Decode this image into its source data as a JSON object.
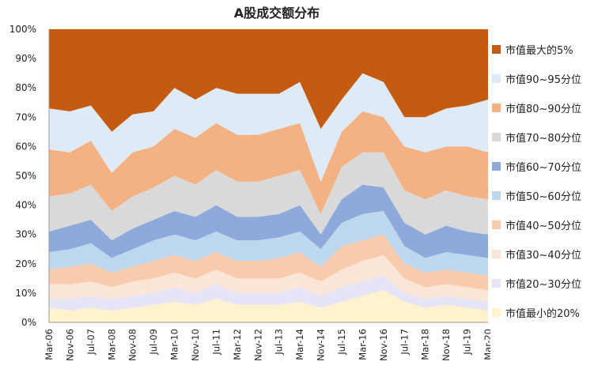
{
  "chart_data": {
    "type": "area",
    "stacked": true,
    "title": "A股成交额分布",
    "xlabel": "",
    "ylabel": "",
    "ylim": [
      0,
      100
    ],
    "yticks": [
      "0%",
      "10%",
      "20%",
      "30%",
      "40%",
      "50%",
      "60%",
      "70%",
      "80%",
      "90%",
      "100%"
    ],
    "x_tick_labels": [
      "Mar-06",
      "Nov-06",
      "Jul-07",
      "Mar-08",
      "Nov-08",
      "Jul-09",
      "Mar-10",
      "Nov-10",
      "Jul-11",
      "Mar-12",
      "Nov-12",
      "Jul-13",
      "Mar-14",
      "Nov-14",
      "Jul-15",
      "Mar-16",
      "Nov-16",
      "Jul-17",
      "Mar-18",
      "Nov-18",
      "Jul-19",
      "Mar-20"
    ],
    "anchor_points_note": "cumulative upper boundary (%) of each band at tick dates, interpolated between",
    "boundaries": [
      {
        "name": "市值最小的20%",
        "values": [
          5,
          4,
          5,
          4,
          5,
          6,
          7,
          6,
          8,
          6,
          6,
          6,
          7,
          5,
          7,
          9,
          11,
          7,
          5,
          6,
          5,
          4
        ]
      },
      {
        "name": "市值20~30分位",
        "values": [
          8,
          8,
          9,
          8,
          9,
          10,
          12,
          10,
          13,
          10,
          10,
          10,
          12,
          9,
          12,
          14,
          16,
          10,
          8,
          9,
          8,
          7
        ]
      },
      {
        "name": "市值30~40分位",
        "values": [
          13,
          13,
          14,
          12,
          14,
          15,
          17,
          15,
          18,
          15,
          15,
          15,
          17,
          14,
          18,
          21,
          23,
          15,
          12,
          13,
          12,
          11
        ]
      },
      {
        "name": "市值40~50分位",
        "values": [
          18,
          19,
          20,
          17,
          19,
          21,
          23,
          21,
          24,
          21,
          21,
          22,
          24,
          19,
          26,
          28,
          30,
          20,
          17,
          18,
          17,
          16
        ]
      },
      {
        "name": "市值50~60分位",
        "values": [
          24,
          25,
          27,
          22,
          25,
          28,
          30,
          28,
          31,
          28,
          28,
          29,
          31,
          25,
          34,
          37,
          38,
          26,
          22,
          24,
          23,
          22
        ]
      },
      {
        "name": "市值60~70分位",
        "values": [
          31,
          33,
          35,
          28,
          32,
          35,
          38,
          36,
          40,
          36,
          36,
          37,
          40,
          30,
          42,
          47,
          46,
          34,
          30,
          33,
          31,
          30
        ]
      },
      {
        "name": "市值70~80分位",
        "values": [
          43,
          44,
          47,
          38,
          43,
          46,
          50,
          47,
          52,
          48,
          48,
          50,
          52,
          37,
          53,
          58,
          58,
          45,
          42,
          45,
          43,
          42
        ]
      },
      {
        "name": "市值80~90分位",
        "values": [
          59,
          58,
          62,
          51,
          58,
          60,
          66,
          63,
          68,
          64,
          64,
          66,
          68,
          48,
          65,
          72,
          70,
          60,
          58,
          60,
          60,
          58
        ]
      },
      {
        "name": "市值90~95分位",
        "values": [
          73,
          72,
          74,
          65,
          71,
          72,
          80,
          76,
          80,
          78,
          78,
          78,
          82,
          66,
          76,
          85,
          82,
          70,
          70,
          73,
          74,
          76
        ]
      },
      {
        "name": "市值最大的5%",
        "values": [
          100,
          100,
          100,
          100,
          100,
          100,
          100,
          100,
          100,
          100,
          100,
          100,
          100,
          100,
          100,
          100,
          100,
          100,
          100,
          100,
          100,
          100
        ]
      }
    ],
    "legend": [
      {
        "label": "市值最大的5%",
        "color": "#C55A11"
      },
      {
        "label": "市值90~95分位",
        "color": "#DEEBF7"
      },
      {
        "label": "市值80~90分位",
        "color": "#F4B183"
      },
      {
        "label": "市值70~80分位",
        "color": "#D9D9D9"
      },
      {
        "label": "市值60~70分位",
        "color": "#8EA9DB"
      },
      {
        "label": "市值50~60分位",
        "color": "#BDD7EE"
      },
      {
        "label": "市值40~50分位",
        "color": "#F8CBAD"
      },
      {
        "label": "市值30~40分位",
        "color": "#FBE5D6"
      },
      {
        "label": "市值20~30分位",
        "color": "#E5E5F7"
      },
      {
        "label": "市值最小的20%",
        "color": "#FFF2CC"
      }
    ]
  }
}
